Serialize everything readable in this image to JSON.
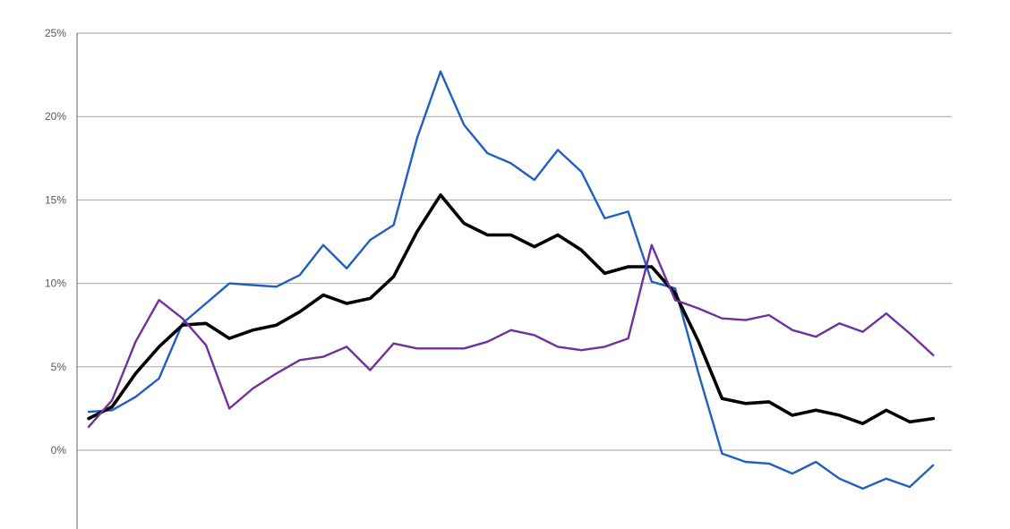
{
  "chart_data": {
    "type": "line",
    "title": "",
    "xlabel": "",
    "ylabel": "",
    "ylim": [
      -4.5,
      25
    ],
    "y_ticks": [
      0,
      5,
      10,
      15,
      20,
      25
    ],
    "y_tick_labels": [
      "0%",
      "5%",
      "10%",
      "15%",
      "20%",
      "25%"
    ],
    "grid": true,
    "legend": "none",
    "x": [
      1,
      2,
      3,
      4,
      5,
      6,
      7,
      8,
      9,
      10,
      11,
      12,
      13,
      14,
      15,
      16,
      17,
      18,
      19,
      20,
      21,
      22,
      23,
      24,
      25,
      26,
      27,
      28,
      29,
      30,
      31,
      32,
      33,
      34,
      35,
      36,
      37,
      38
    ],
    "series": [
      {
        "color": "#1f5fc4",
        "values": [
          2.3,
          2.4,
          3.2,
          4.3,
          7.6,
          8.8,
          10.0,
          9.9,
          9.8,
          10.5,
          12.3,
          10.9,
          12.6,
          13.5,
          18.7,
          22.7,
          19.5,
          17.8,
          17.2,
          16.2,
          18.0,
          16.7,
          13.9,
          14.3,
          10.1,
          9.7,
          4.6,
          -0.2,
          -0.7,
          -0.8,
          -1.4,
          -0.7,
          -1.7,
          -2.3,
          -1.7,
          -2.2,
          -0.9,
          null
        ]
      },
      {
        "color": "#000000",
        "values": [
          1.9,
          2.6,
          4.6,
          6.2,
          7.5,
          7.6,
          6.7,
          7.2,
          7.5,
          8.3,
          9.3,
          8.8,
          9.1,
          10.4,
          13.1,
          15.3,
          13.6,
          12.9,
          12.9,
          12.2,
          12.9,
          12.0,
          10.6,
          11.0,
          11.0,
          9.4,
          6.5,
          3.1,
          2.8,
          2.9,
          2.1,
          2.4,
          2.1,
          1.6,
          2.4,
          1.7,
          1.9,
          null
        ]
      },
      {
        "color": "#7030a0",
        "values": [
          1.4,
          3.0,
          6.5,
          9.0,
          7.9,
          6.3,
          2.5,
          3.7,
          4.6,
          5.4,
          5.6,
          6.2,
          4.8,
          6.4,
          6.1,
          6.1,
          6.1,
          6.5,
          7.2,
          6.9,
          6.2,
          6.0,
          6.2,
          6.7,
          12.3,
          9.0,
          8.5,
          7.9,
          7.8,
          8.1,
          7.2,
          6.8,
          7.6,
          7.1,
          8.2,
          7.0,
          5.7,
          null
        ]
      }
    ]
  }
}
